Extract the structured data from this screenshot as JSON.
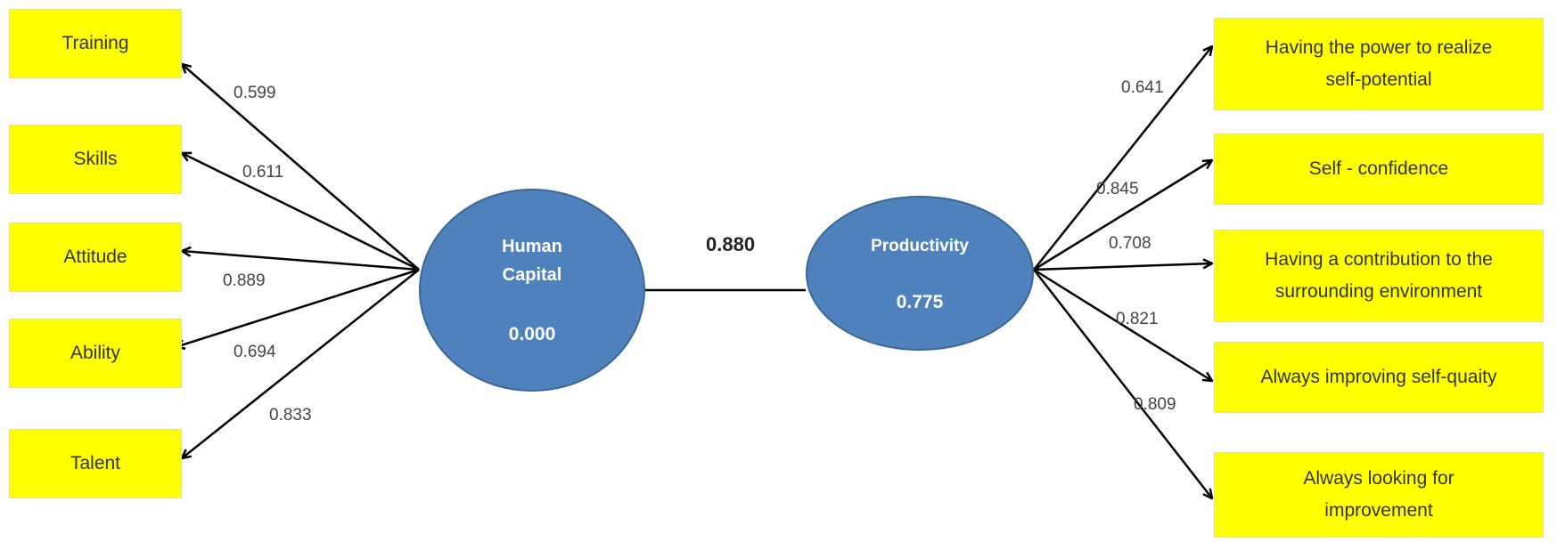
{
  "human_capital": {
    "line1": "Human",
    "line2": "Capital",
    "value": "0.000"
  },
  "productivity": {
    "label": "Productivity",
    "value": "0.775"
  },
  "path_coefficient": "0.880",
  "left_indicators": [
    {
      "label": "Training",
      "loading": "0.599"
    },
    {
      "label": "Skills",
      "loading": "0.611"
    },
    {
      "label": "Attitude",
      "loading": "0.889"
    },
    {
      "label": "Ability",
      "loading": "0.694"
    },
    {
      "label": "Talent",
      "loading": "0.833"
    }
  ],
  "right_indicators": [
    {
      "line1": "Having the power to realize",
      "line2": "self-potential",
      "loading": "0.641"
    },
    {
      "line1": "Self - confidence",
      "line2": "",
      "loading": "0.845"
    },
    {
      "line1": "Having a contribution to the",
      "line2": "surrounding environment",
      "loading": "0.708"
    },
    {
      "line1": "Always improving self-quaity",
      "line2": "",
      "loading": "0.821"
    },
    {
      "line1": "Always looking for",
      "line2": "improvement",
      "loading": "0.809"
    }
  ],
  "colors": {
    "node_fill": "#4f81bd",
    "indicator_fill": "#ffff00",
    "arrow": "#000000"
  }
}
